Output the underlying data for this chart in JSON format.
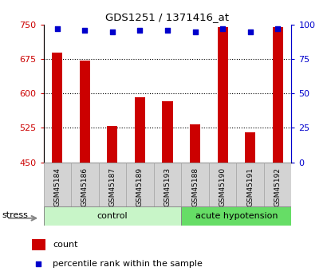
{
  "title": "GDS1251 / 1371416_at",
  "samples": [
    "GSM45184",
    "GSM45186",
    "GSM45187",
    "GSM45189",
    "GSM45193",
    "GSM45188",
    "GSM45190",
    "GSM45191",
    "GSM45192"
  ],
  "counts": [
    690,
    672,
    530,
    592,
    584,
    532,
    745,
    515,
    745
  ],
  "percentiles": [
    97,
    96,
    95,
    96,
    96,
    95,
    97,
    95,
    97
  ],
  "ylim_left": [
    450,
    750
  ],
  "ylim_right": [
    0,
    100
  ],
  "yticks_left": [
    450,
    525,
    600,
    675,
    750
  ],
  "yticks_right": [
    0,
    25,
    50,
    75,
    100
  ],
  "groups": [
    {
      "label": "control",
      "start": 0,
      "end": 5,
      "color": "#c8f5c8"
    },
    {
      "label": "acute hypotension",
      "start": 5,
      "end": 9,
      "color": "#66dd66"
    }
  ],
  "bar_color": "#cc0000",
  "dot_color": "#0000cc",
  "left_axis_color": "#cc0000",
  "right_axis_color": "#0000cc",
  "grid_color": "#000000",
  "tick_label_bg": "#d3d3d3",
  "stress_label": "stress",
  "legend_count": "count",
  "legend_percentile": "percentile rank within the sample"
}
